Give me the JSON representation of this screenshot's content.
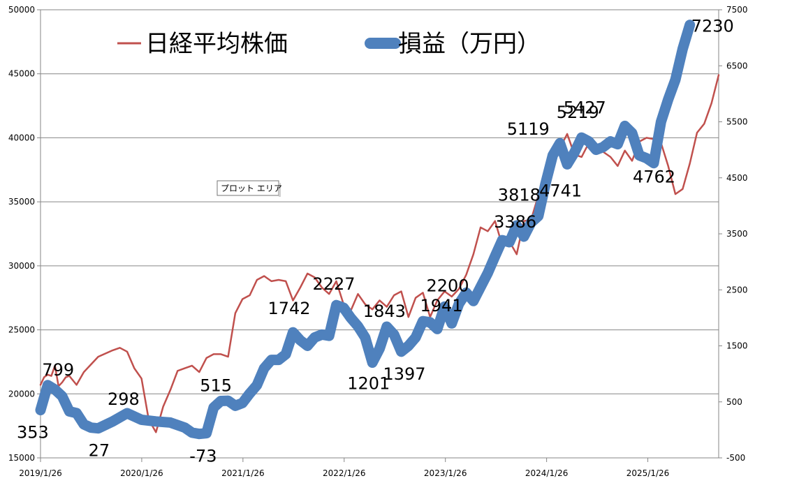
{
  "chart_data": {
    "type": "line",
    "legend": {
      "placement": "top-left",
      "items": [
        {
          "label": "日経平均株価",
          "color": "#C0504D"
        },
        {
          "label": "損益（万円）",
          "color": "#4F81BD"
        }
      ]
    },
    "tooltip": "プロット エリア",
    "x_ticks": [
      "2019/1/26",
      "2020/1/26",
      "2021/1/26",
      "2022/1/26",
      "2023/1/26",
      "2024/1/26",
      "2025/1/26"
    ],
    "y_left": {
      "min": 15000,
      "max": 50000,
      "ticks": [
        "15000",
        "20000",
        "25000",
        "30000",
        "35000",
        "40000",
        "45000",
        "50000"
      ]
    },
    "y_right": {
      "min": -500,
      "max": 7500,
      "ticks": [
        "-500",
        "500",
        "1500",
        "2500",
        "3500",
        "4500",
        "5500",
        "6500",
        "7500"
      ]
    },
    "grid": true,
    "series": [
      {
        "name": "日経平均株価",
        "axis": "left",
        "color": "#C0504D",
        "values": [
          [
            0,
            20700
          ],
          [
            0.25,
            21300
          ],
          [
            0.5,
            21500
          ],
          [
            0.75,
            21400
          ],
          [
            1,
            22200
          ],
          [
            1.25,
            20600
          ],
          [
            1.5,
            20900
          ],
          [
            1.75,
            21300
          ],
          [
            2,
            21400
          ],
          [
            2.5,
            20700
          ],
          [
            3,
            21700
          ],
          [
            4,
            22900
          ],
          [
            5,
            23400
          ],
          [
            5.5,
            23600
          ],
          [
            6,
            23300
          ],
          [
            6.5,
            22000
          ],
          [
            7,
            21200
          ],
          [
            7.5,
            18000
          ],
          [
            8,
            17000
          ],
          [
            8.5,
            19000
          ],
          [
            9,
            20300
          ],
          [
            9.5,
            21800
          ],
          [
            10,
            22000
          ],
          [
            10.5,
            22200
          ],
          [
            11,
            21700
          ],
          [
            11.5,
            22800
          ],
          [
            12,
            23100
          ],
          [
            12.5,
            23100
          ],
          [
            13,
            22900
          ],
          [
            13.5,
            26300
          ],
          [
            14,
            27400
          ],
          [
            14.5,
            27700
          ],
          [
            15,
            28900
          ],
          [
            15.5,
            29200
          ],
          [
            16,
            28800
          ],
          [
            16.5,
            28900
          ],
          [
            17,
            28800
          ],
          [
            17.5,
            27300
          ],
          [
            18,
            28300
          ],
          [
            18.5,
            29400
          ],
          [
            19,
            29100
          ],
          [
            19.5,
            28300
          ],
          [
            20,
            27800
          ],
          [
            20.5,
            28800
          ],
          [
            21,
            27000
          ],
          [
            21.5,
            26500
          ],
          [
            22,
            27800
          ],
          [
            22.5,
            27000
          ],
          [
            23,
            26600
          ],
          [
            23.5,
            27300
          ],
          [
            24,
            26800
          ],
          [
            24.5,
            27700
          ],
          [
            25,
            28000
          ],
          [
            25.5,
            26000
          ],
          [
            26,
            27500
          ],
          [
            26.5,
            27900
          ],
          [
            27,
            26000
          ],
          [
            27.5,
            27300
          ],
          [
            28,
            28000
          ],
          [
            28.5,
            27600
          ],
          [
            29,
            28200
          ],
          [
            29.5,
            29300
          ],
          [
            30,
            30900
          ],
          [
            30.5,
            33000
          ],
          [
            31,
            32700
          ],
          [
            31.5,
            33500
          ],
          [
            32,
            31600
          ],
          [
            32.5,
            31900
          ],
          [
            33,
            30900
          ],
          [
            33.5,
            33500
          ],
          [
            34,
            33600
          ],
          [
            34.5,
            35500
          ],
          [
            35,
            36500
          ],
          [
            35.5,
            38600
          ],
          [
            36,
            39200
          ],
          [
            36.5,
            40300
          ],
          [
            37,
            38700
          ],
          [
            37.5,
            38500
          ],
          [
            38,
            39600
          ],
          [
            38.5,
            39100
          ],
          [
            39,
            38900
          ],
          [
            39.5,
            38500
          ],
          [
            40,
            37800
          ],
          [
            40.5,
            39000
          ],
          [
            41,
            38200
          ],
          [
            41.5,
            39700
          ],
          [
            42,
            40000
          ],
          [
            42.5,
            39900
          ],
          [
            43,
            39600
          ],
          [
            43.5,
            37800
          ],
          [
            44,
            35600
          ],
          [
            44.5,
            36000
          ],
          [
            45,
            38000
          ],
          [
            45.5,
            40400
          ],
          [
            46,
            41100
          ],
          [
            46.5,
            42700
          ],
          [
            47,
            44900
          ]
        ]
      },
      {
        "name": "損益（万円）",
        "axis": "right",
        "color": "#4F81BD",
        "values": [
          [
            0,
            353
          ],
          [
            0.5,
            799
          ],
          [
            1,
            720
          ],
          [
            1.5,
            600
          ],
          [
            2,
            330
          ],
          [
            2.5,
            300
          ],
          [
            3,
            100
          ],
          [
            3.5,
            40
          ],
          [
            4,
            27
          ],
          [
            5,
            150
          ],
          [
            6,
            298
          ],
          [
            7,
            180
          ],
          [
            8,
            150
          ],
          [
            9,
            130
          ],
          [
            10,
            40
          ],
          [
            10.5,
            -50
          ],
          [
            11,
            -73
          ],
          [
            11.5,
            -60
          ],
          [
            12,
            400
          ],
          [
            12.5,
            515
          ],
          [
            13,
            520
          ],
          [
            13.5,
            430
          ],
          [
            14,
            480
          ],
          [
            14.5,
            650
          ],
          [
            15,
            800
          ],
          [
            15.5,
            1100
          ],
          [
            16,
            1250
          ],
          [
            16.5,
            1250
          ],
          [
            17,
            1350
          ],
          [
            17.5,
            1742
          ],
          [
            18,
            1600
          ],
          [
            18.5,
            1500
          ],
          [
            19,
            1650
          ],
          [
            19.5,
            1700
          ],
          [
            20,
            1680
          ],
          [
            20.5,
            2227
          ],
          [
            21,
            2180
          ],
          [
            21.5,
            2000
          ],
          [
            22,
            1850
          ],
          [
            22.5,
            1650
          ],
          [
            23,
            1201
          ],
          [
            23.5,
            1450
          ],
          [
            24,
            1843
          ],
          [
            24.5,
            1700
          ],
          [
            25,
            1397
          ],
          [
            25.5,
            1500
          ],
          [
            26,
            1650
          ],
          [
            26.5,
            1941
          ],
          [
            27,
            1920
          ],
          [
            27.5,
            1800
          ],
          [
            28,
            2200
          ],
          [
            28.5,
            1900
          ],
          [
            29,
            2250
          ],
          [
            29.5,
            2450
          ],
          [
            30,
            2300
          ],
          [
            30.5,
            2550
          ],
          [
            31,
            2800
          ],
          [
            31.5,
            3100
          ],
          [
            32,
            3386
          ],
          [
            32.5,
            3350
          ],
          [
            33,
            3650
          ],
          [
            33.5,
            3450
          ],
          [
            34,
            3700
          ],
          [
            34.5,
            3818
          ],
          [
            35,
            4400
          ],
          [
            35.5,
            4900
          ],
          [
            36,
            5119
          ],
          [
            36.5,
            4741
          ],
          [
            37,
            4950
          ],
          [
            37.5,
            5219
          ],
          [
            38,
            5150
          ],
          [
            38.5,
            5000
          ],
          [
            39,
            5050
          ],
          [
            39.5,
            5150
          ],
          [
            40,
            5100
          ],
          [
            40.5,
            5427
          ],
          [
            41,
            5300
          ],
          [
            41.5,
            4900
          ],
          [
            42,
            4850
          ],
          [
            42.5,
            4762
          ],
          [
            43,
            5500
          ],
          [
            43.5,
            5900
          ],
          [
            44,
            6250
          ],
          [
            44.5,
            6800
          ],
          [
            45,
            7230
          ]
        ]
      }
    ],
    "annotations": [
      {
        "text": "353",
        "series": 1,
        "x": 0,
        "y": 353
      },
      {
        "text": "799",
        "series": 1,
        "x": 0.5,
        "y": 799
      },
      {
        "text": "27",
        "series": 1,
        "x": 4,
        "y": 27
      },
      {
        "text": "298",
        "series": 1,
        "x": 6,
        "y": 298
      },
      {
        "text": "-73",
        "series": 1,
        "x": 11,
        "y": -73
      },
      {
        "text": "515",
        "series": 1,
        "x": 12.5,
        "y": 515
      },
      {
        "text": "1742",
        "series": 1,
        "x": 17.5,
        "y": 1742
      },
      {
        "text": "2227",
        "series": 1,
        "x": 20.5,
        "y": 2227
      },
      {
        "text": "1201",
        "series": 1,
        "x": 23,
        "y": 1201
      },
      {
        "text": "1843",
        "series": 1,
        "x": 24,
        "y": 1843
      },
      {
        "text": "1397",
        "series": 1,
        "x": 25,
        "y": 1397
      },
      {
        "text": "1941",
        "series": 1,
        "x": 26.5,
        "y": 1941
      },
      {
        "text": "2200",
        "series": 1,
        "x": 28,
        "y": 2200
      },
      {
        "text": "3386",
        "series": 1,
        "x": 32,
        "y": 3386
      },
      {
        "text": "3818",
        "series": 1,
        "x": 34.5,
        "y": 3818
      },
      {
        "text": "5119",
        "series": 1,
        "x": 36,
        "y": 5119
      },
      {
        "text": "4741",
        "series": 1,
        "x": 36.5,
        "y": 4741
      },
      {
        "text": "5219",
        "series": 1,
        "x": 37.5,
        "y": 5219
      },
      {
        "text": "5427",
        "series": 1,
        "x": 40.5,
        "y": 5427
      },
      {
        "text": "4762",
        "series": 1,
        "x": 42.5,
        "y": 4762
      },
      {
        "text": "7230",
        "series": 1,
        "x": 45,
        "y": 7230
      }
    ]
  }
}
